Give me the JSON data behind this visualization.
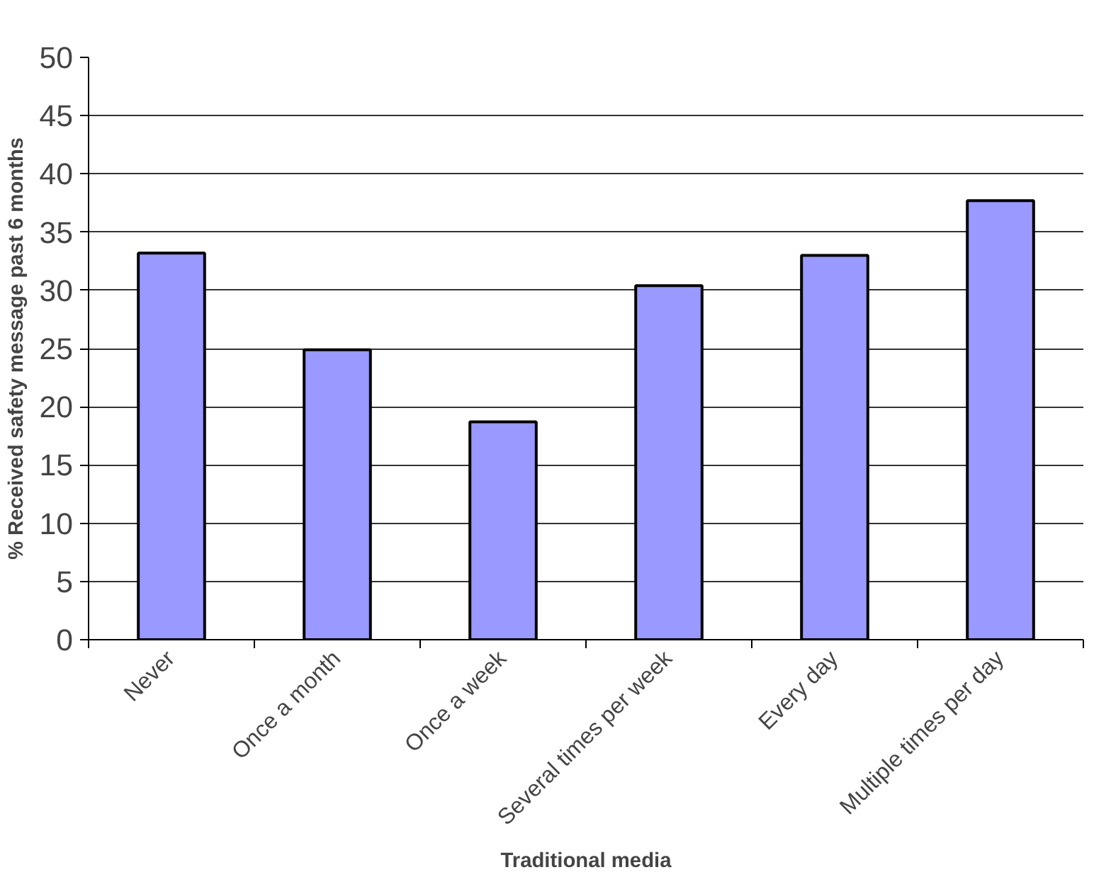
{
  "chart_data": {
    "type": "bar",
    "xlabel": "Traditional media",
    "ylabel": "% Received safety message past 6 months",
    "categories": [
      "Never",
      "Once a month",
      "Once a week",
      "Several times per week",
      "Every day",
      "Multiple times per day"
    ],
    "values": [
      33.2,
      24.9,
      18.7,
      30.4,
      33.0,
      37.7
    ],
    "color": "#9999ff",
    "ylim": [
      0,
      50
    ],
    "yticks": [
      0,
      5,
      10,
      15,
      20,
      25,
      30,
      35,
      40,
      45,
      50
    ],
    "grid": "y"
  }
}
